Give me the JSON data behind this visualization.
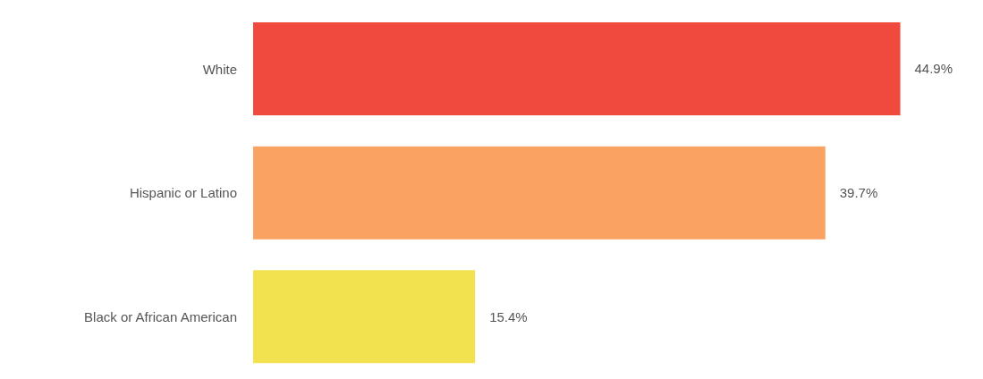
{
  "chart_data": {
    "type": "bar",
    "orientation": "horizontal",
    "categories": [
      "White",
      "Hispanic or Latino",
      "Black or African American"
    ],
    "values": [
      44.9,
      39.7,
      15.4
    ],
    "value_labels": [
      "44.9%",
      "39.7%",
      "15.4%"
    ],
    "colors": [
      "#f04a3e",
      "#f9a262",
      "#f2e250"
    ],
    "tick_labels": false
  }
}
